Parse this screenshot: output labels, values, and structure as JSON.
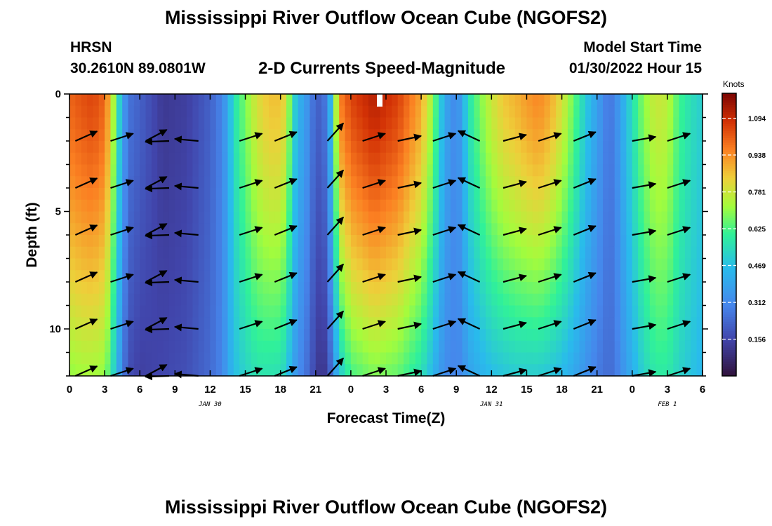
{
  "header": {
    "title": "Mississippi River Outflow Ocean Cube (NGOFS2)",
    "title_repeat": "Mississippi River Outflow Ocean Cube (NGOFS2)",
    "station": "HRSN",
    "coords": "30.2610N  89.0801W",
    "subtitle": "2-D Currents Speed-Magnitude",
    "model_start_label": "Model Start Time",
    "model_start_value": "01/30/2022 Hour 15"
  },
  "chart_data": {
    "type": "heatmap",
    "title": "2-D Currents Speed-Magnitude",
    "xlabel": "Forecast Time(Z)",
    "ylabel": "Depth (ft)",
    "x_range": [
      0,
      54
    ],
    "x_tick_labels": [
      "0",
      "3",
      "6",
      "9",
      "12",
      "15",
      "18",
      "21",
      "0",
      "3",
      "6",
      "9",
      "12",
      "15",
      "18",
      "21",
      "0",
      "3",
      "6"
    ],
    "date_labels": [
      {
        "hour": 12,
        "text": "JAN 30"
      },
      {
        "hour": 36,
        "text": "JAN 31"
      },
      {
        "hour": 51,
        "text": "FEB 1"
      }
    ],
    "y_range": [
      0,
      12
    ],
    "y_ticks": [
      0,
      5,
      10
    ],
    "colorbar": {
      "title": "Knots",
      "ticks": [
        0.156,
        0.312,
        0.469,
        0.625,
        0.781,
        0.938,
        1.094
      ],
      "range": [
        0.0,
        1.2
      ]
    },
    "speed_profile": {
      "hours": [
        0,
        1,
        2,
        3,
        3.5,
        4,
        4.5,
        5,
        6,
        8,
        10,
        12,
        13,
        13.5,
        14,
        15,
        16,
        17,
        18,
        18.5,
        19,
        19.5,
        20,
        20.5,
        21,
        21.5,
        22,
        22.5,
        23,
        24,
        26,
        28,
        29,
        30,
        30.5,
        31,
        31.5,
        32,
        33,
        33.5,
        34,
        35,
        36,
        37,
        38,
        39,
        40,
        41,
        42,
        43,
        44,
        45,
        46,
        46.5,
        47,
        48,
        49,
        50,
        51,
        52,
        53,
        54
      ],
      "surface": [
        1.0,
        1.03,
        1.05,
        1.0,
        0.85,
        0.62,
        0.4,
        0.26,
        0.22,
        0.12,
        0.14,
        0.22,
        0.3,
        0.4,
        0.55,
        0.68,
        0.8,
        0.86,
        0.86,
        0.8,
        0.58,
        0.42,
        0.4,
        0.3,
        0.22,
        0.22,
        0.3,
        0.55,
        0.95,
        1.05,
        1.12,
        1.06,
        0.98,
        0.9,
        0.8,
        0.7,
        0.55,
        0.4,
        0.3,
        0.4,
        0.55,
        0.68,
        0.78,
        0.85,
        0.88,
        0.92,
        0.95,
        0.9,
        0.8,
        0.66,
        0.5,
        0.38,
        0.26,
        0.3,
        0.38,
        0.55,
        0.7,
        0.78,
        0.76,
        0.62,
        0.55,
        0.5
      ],
      "bottom": [
        0.7,
        0.72,
        0.72,
        0.7,
        0.6,
        0.45,
        0.3,
        0.18,
        0.14,
        0.16,
        0.18,
        0.24,
        0.3,
        0.38,
        0.46,
        0.52,
        0.56,
        0.56,
        0.55,
        0.5,
        0.4,
        0.32,
        0.28,
        0.22,
        0.14,
        0.1,
        0.14,
        0.3,
        0.48,
        0.62,
        0.68,
        0.65,
        0.6,
        0.55,
        0.5,
        0.44,
        0.38,
        0.32,
        0.3,
        0.32,
        0.38,
        0.42,
        0.46,
        0.48,
        0.5,
        0.5,
        0.5,
        0.48,
        0.45,
        0.4,
        0.34,
        0.28,
        0.24,
        0.26,
        0.32,
        0.42,
        0.52,
        0.58,
        0.58,
        0.52,
        0.48,
        0.44
      ]
    },
    "arrow_depths": [
      2,
      4,
      6,
      8,
      10,
      12
    ],
    "arrow_columns": [
      {
        "hour": 0.5,
        "dir_deg": 24
      },
      {
        "hour": 3.5,
        "dir_deg": 18
      },
      {
        "hour": 6.5,
        "dir_deg": 28
      },
      {
        "hour": 8.5,
        "dir_deg": -178
      },
      {
        "hour": 11,
        "dir_deg": 175
      },
      {
        "hour": 14.5,
        "dir_deg": 18
      },
      {
        "hour": 17.5,
        "dir_deg": 22
      },
      {
        "hour": 22,
        "dir_deg": 48
      },
      {
        "hour": 25,
        "dir_deg": 18
      },
      {
        "hour": 28,
        "dir_deg": 12
      },
      {
        "hour": 31,
        "dir_deg": 18
      },
      {
        "hour": 35,
        "dir_deg": 155
      },
      {
        "hour": 37,
        "dir_deg": 15
      },
      {
        "hour": 40,
        "dir_deg": 18
      },
      {
        "hour": 43,
        "dir_deg": 22
      },
      {
        "hour": 48,
        "dir_deg": 10
      },
      {
        "hour": 51,
        "dir_deg": 18
      }
    ]
  },
  "colors": {
    "background": "#ffffff",
    "axis": "#000000",
    "arrow": "#000000"
  }
}
